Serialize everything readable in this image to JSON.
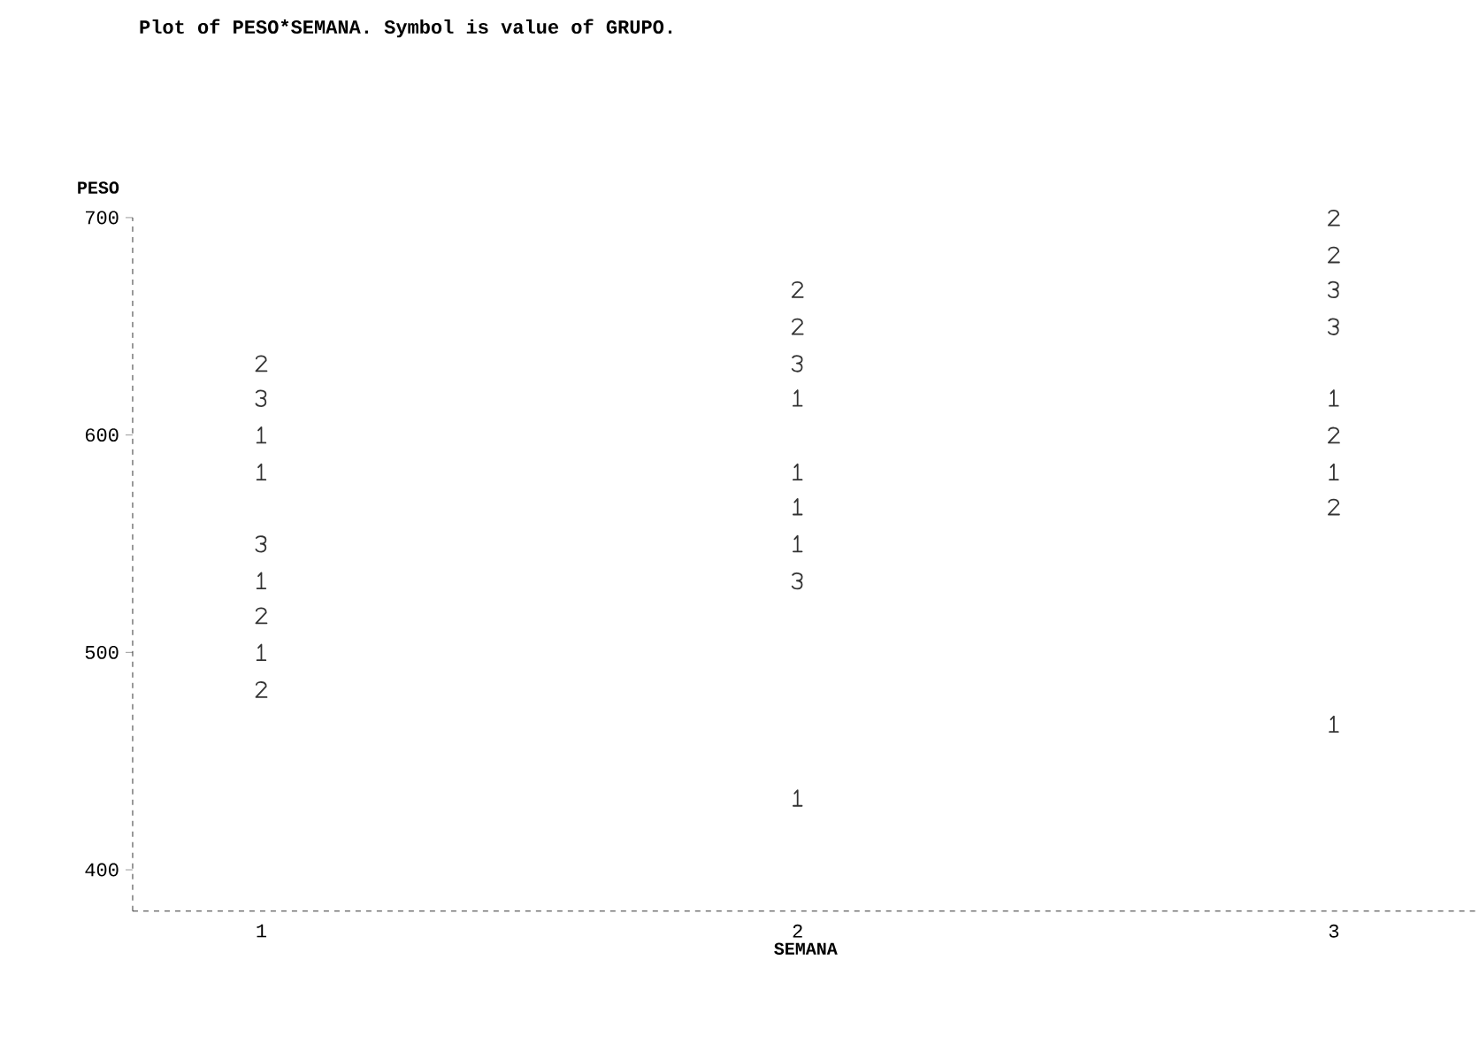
{
  "chart_data": {
    "type": "scatter",
    "title": "Plot of PESO*SEMANA.  Symbol is value of GRUPO.",
    "xlabel": "SEMANA",
    "ylabel": "PESO",
    "xlim": [
      0.76,
      3.27
    ],
    "xticks": [
      1,
      2,
      3
    ],
    "ylim": [
      381,
      700
    ],
    "yticks": [
      400,
      500,
      600,
      700
    ],
    "grid": false,
    "series": [
      {
        "name": "1",
        "color": "#333333",
        "x": [
          1,
          1,
          1,
          1,
          2,
          2,
          2,
          2,
          2,
          3,
          3,
          3
        ],
        "values": [
          600,
          583,
          533,
          500,
          617,
          583,
          567,
          550,
          433,
          617,
          583,
          467
        ]
      },
      {
        "name": "2",
        "color": "#333333",
        "x": [
          1,
          1,
          1,
          2,
          2,
          3,
          3,
          3,
          3
        ],
        "values": [
          633,
          517,
          483,
          667,
          650,
          700,
          683,
          600,
          567
        ]
      },
      {
        "name": "3",
        "color": "#333333",
        "x": [
          1,
          1,
          2,
          2,
          3,
          3
        ],
        "values": [
          617,
          550,
          633,
          533,
          667,
          650
        ]
      }
    ]
  }
}
